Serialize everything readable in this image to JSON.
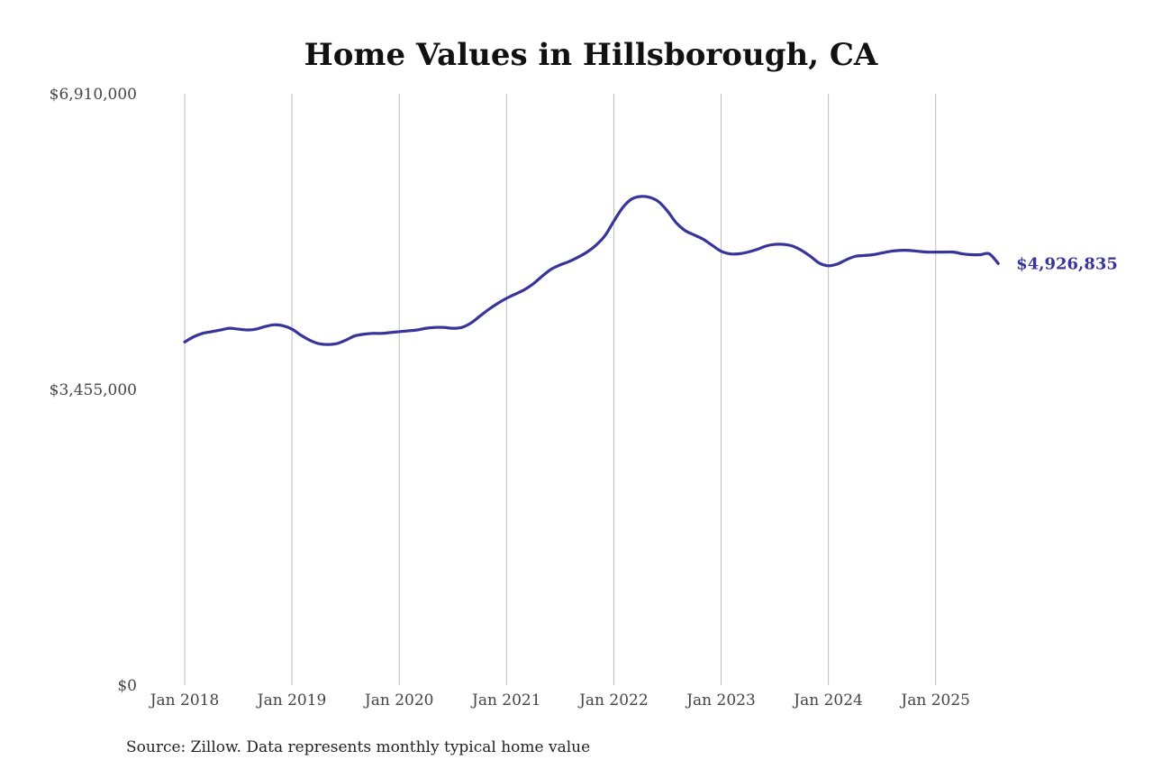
{
  "chart_data": {
    "type": "line",
    "title": "Home Values in Hillsborough, CA",
    "source": "Source: Zillow. Data represents monthly typical home value",
    "ylim": [
      0,
      6910000
    ],
    "y_ticks": [
      {
        "value": 0,
        "label": "$0"
      },
      {
        "value": 3455000,
        "label": "$3,455,000"
      },
      {
        "value": 6910000,
        "label": "$6,910,000"
      }
    ],
    "x_ticks": [
      {
        "value": "2018-01",
        "label": "Jan 2018"
      },
      {
        "value": "2019-01",
        "label": "Jan 2019"
      },
      {
        "value": "2020-01",
        "label": "Jan 2020"
      },
      {
        "value": "2021-01",
        "label": "Jan 2021"
      },
      {
        "value": "2022-01",
        "label": "Jan 2022"
      },
      {
        "value": "2023-01",
        "label": "Jan 2023"
      },
      {
        "value": "2024-01",
        "label": "Jan 2024"
      },
      {
        "value": "2025-01",
        "label": "Jan 2025"
      }
    ],
    "x_range": [
      "2018-01",
      "2025-12"
    ],
    "grid": "vertical",
    "line_color": "#37349a",
    "end_label": "$4,926,835",
    "series": [
      {
        "x": [
          "2018-01",
          "2018-02",
          "2018-03",
          "2018-04",
          "2018-05",
          "2018-06",
          "2018-07",
          "2018-08",
          "2018-09",
          "2018-10",
          "2018-11",
          "2018-12",
          "2019-01",
          "2019-02",
          "2019-03",
          "2019-04",
          "2019-05",
          "2019-06",
          "2019-07",
          "2019-08",
          "2019-09",
          "2019-10",
          "2019-11",
          "2019-12",
          "2020-01",
          "2020-02",
          "2020-03",
          "2020-04",
          "2020-05",
          "2020-06",
          "2020-07",
          "2020-08",
          "2020-09",
          "2020-10",
          "2020-11",
          "2020-12",
          "2021-01",
          "2021-02",
          "2021-03",
          "2021-04",
          "2021-05",
          "2021-06",
          "2021-07",
          "2021-08",
          "2021-09",
          "2021-10",
          "2021-11",
          "2021-12",
          "2022-01",
          "2022-02",
          "2022-03",
          "2022-04",
          "2022-05",
          "2022-06",
          "2022-07",
          "2022-08",
          "2022-09",
          "2022-10",
          "2022-11",
          "2022-12",
          "2023-01",
          "2023-02",
          "2023-03",
          "2023-04",
          "2023-05",
          "2023-06",
          "2023-07",
          "2023-08",
          "2023-09",
          "2023-10",
          "2023-11",
          "2023-12",
          "2024-01",
          "2024-02",
          "2024-03",
          "2024-04",
          "2024-05",
          "2024-06",
          "2024-07",
          "2024-08",
          "2024-09",
          "2024-10",
          "2024-11",
          "2024-12",
          "2025-01",
          "2025-02",
          "2025-03",
          "2025-04",
          "2025-05",
          "2025-06",
          "2025-07",
          "2025-08"
        ],
        "values": [
          4010000,
          4070000,
          4110000,
          4130000,
          4150000,
          4170000,
          4160000,
          4150000,
          4160000,
          4190000,
          4210000,
          4200000,
          4160000,
          4090000,
          4030000,
          3990000,
          3980000,
          3990000,
          4030000,
          4080000,
          4100000,
          4110000,
          4110000,
          4120000,
          4130000,
          4140000,
          4150000,
          4170000,
          4180000,
          4180000,
          4170000,
          4180000,
          4230000,
          4310000,
          4390000,
          4460000,
          4520000,
          4570000,
          4620000,
          4690000,
          4780000,
          4860000,
          4910000,
          4950000,
          5000000,
          5060000,
          5140000,
          5250000,
          5420000,
          5580000,
          5680000,
          5710000,
          5700000,
          5650000,
          5540000,
          5400000,
          5310000,
          5260000,
          5210000,
          5140000,
          5070000,
          5040000,
          5040000,
          5060000,
          5090000,
          5130000,
          5150000,
          5150000,
          5130000,
          5080000,
          5010000,
          4930000,
          4900000,
          4920000,
          4970000,
          5010000,
          5020000,
          5030000,
          5050000,
          5070000,
          5080000,
          5080000,
          5070000,
          5060000,
          5060000,
          5060000,
          5060000,
          5040000,
          5030000,
          5030000,
          5040000,
          4926835
        ]
      }
    ]
  }
}
